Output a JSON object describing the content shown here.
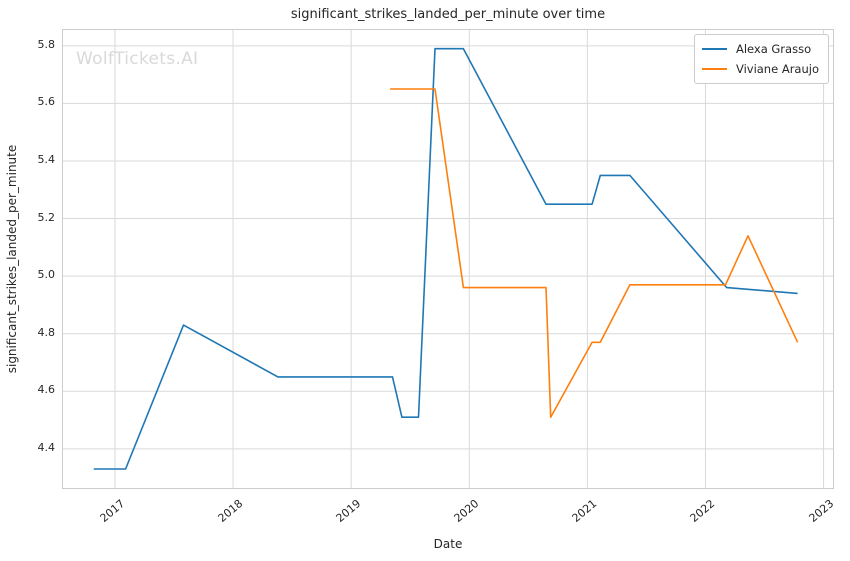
{
  "watermark": {
    "text": "WolfTickets.AI"
  },
  "colors": {
    "series_blue": "#1f77b4",
    "series_orange": "#ff7f0e",
    "grid": "#d9d9d9",
    "spine": "#cccccc",
    "text": "#262626",
    "watermark": "#d9d9d9",
    "background": "#ffffff"
  },
  "chart_data": {
    "type": "line",
    "title": "significant_strikes_landed_per_minute over time",
    "xlabel": "Date",
    "ylabel": "significant_strikes_landed_per_minute",
    "grid": true,
    "legend_position": "upper right",
    "x_axis": {
      "min": 2016.56,
      "max": 2023.08,
      "ticks": [
        2017,
        2018,
        2019,
        2020,
        2021,
        2022,
        2023
      ]
    },
    "y_axis": {
      "min": 4.264,
      "max": 5.855,
      "ticks": [
        4.4,
        4.6,
        4.8,
        5.0,
        5.2,
        5.4,
        5.6,
        5.8
      ]
    },
    "series": [
      {
        "name": "Alexa Grasso",
        "color": "#1f77b4",
        "points": [
          [
            2016.82,
            4.33
          ],
          [
            2017.09,
            4.33
          ],
          [
            2017.58,
            4.83
          ],
          [
            2018.38,
            4.65
          ],
          [
            2019.35,
            4.65
          ],
          [
            2019.43,
            4.51
          ],
          [
            2019.57,
            4.51
          ],
          [
            2019.71,
            5.79
          ],
          [
            2019.95,
            5.79
          ],
          [
            2020.65,
            5.25
          ],
          [
            2021.04,
            5.25
          ],
          [
            2021.11,
            5.35
          ],
          [
            2021.36,
            5.35
          ],
          [
            2022.18,
            4.96
          ],
          [
            2022.78,
            4.94
          ]
        ]
      },
      {
        "name": "Viviane Araujo",
        "color": "#ff7f0e",
        "points": [
          [
            2019.33,
            5.65
          ],
          [
            2019.71,
            5.65
          ],
          [
            2019.95,
            4.96
          ],
          [
            2020.65,
            4.96
          ],
          [
            2020.69,
            4.51
          ],
          [
            2021.04,
            4.77
          ],
          [
            2021.11,
            4.77
          ],
          [
            2021.36,
            4.97
          ],
          [
            2022.17,
            4.97
          ],
          [
            2022.36,
            5.14
          ],
          [
            2022.78,
            4.77
          ]
        ]
      }
    ]
  }
}
